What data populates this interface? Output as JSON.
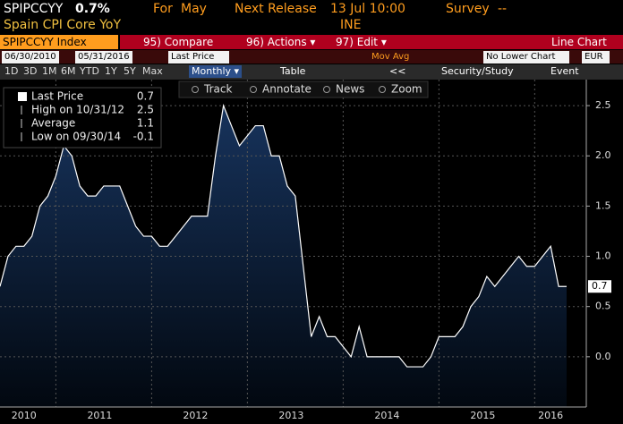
{
  "header": {
    "ticker": "SPIPCCYY",
    "price": "0.7%",
    "for_label": "For",
    "for_value": "May",
    "release_label": "Next Release",
    "release_value": "13 Jul 10:00",
    "survey_label": "Survey",
    "survey_value": "--",
    "description": "Spain CPI Core YoY",
    "source": "INE"
  },
  "toolbar": {
    "security": "SPIPCCYY Index",
    "compare": "95) Compare",
    "actions": "96) Actions ▾",
    "edit": "97) Edit ▾",
    "view": "Line Chart",
    "start_date": "06/30/2010",
    "end_date": "05/31/2016",
    "field": "Last Price",
    "mov_avg": "Mov Avg",
    "lower": "No Lower Chart",
    "currency": "EUR",
    "periods": [
      "1D",
      "3D",
      "1M",
      "6M",
      "YTD",
      "1Y",
      "5Y",
      "Max"
    ],
    "frequency": "Monthly ▾",
    "table": "Table",
    "back": "<<",
    "study": "Security/Study",
    "event": "Event"
  },
  "chart_tools": [
    "Track",
    "Annotate",
    "News",
    "Zoom"
  ],
  "chart_data": {
    "type": "area",
    "color": "#ffffff",
    "legend": [
      {
        "label": "Last Price",
        "value": 0.7
      },
      {
        "label": "High on 10/31/12",
        "value": 2.5
      },
      {
        "label": "Average",
        "value": 1.1
      },
      {
        "label": "Low on 09/30/14",
        "value": -0.1
      }
    ],
    "values": [
      0.7,
      1.0,
      1.1,
      1.1,
      1.2,
      1.5,
      1.6,
      1.8,
      2.1,
      2.0,
      1.7,
      1.6,
      1.6,
      1.7,
      1.7,
      1.7,
      1.5,
      1.3,
      1.2,
      1.2,
      1.1,
      1.1,
      1.2,
      1.3,
      1.4,
      1.4,
      1.4,
      2.0,
      2.5,
      2.3,
      2.1,
      2.2,
      2.3,
      2.3,
      2.0,
      2.0,
      1.7,
      1.6,
      0.9,
      0.2,
      0.4,
      0.2,
      0.2,
      0.1,
      0.0,
      0.3,
      0.0,
      0.0,
      0.0,
      0.0,
      0.0,
      -0.1,
      -0.1,
      -0.1,
      0.0,
      0.2,
      0.2,
      0.2,
      0.3,
      0.5,
      0.6,
      0.8,
      0.7,
      0.8,
      0.9,
      1.0,
      0.9,
      0.9,
      1.0,
      1.1,
      0.7,
      0.7
    ],
    "ylim": [
      -0.5,
      2.75
    ],
    "yticks": [
      {
        "value": 0,
        "label": "0.0"
      },
      0.5,
      {
        "value": 1,
        "label": "1.0"
      },
      1.5,
      {
        "value": 2,
        "label": "2.0"
      },
      2.5
    ],
    "xticks": [
      2010,
      2011,
      2012,
      2013,
      2014,
      2015,
      2016
    ],
    "grid": true
  }
}
